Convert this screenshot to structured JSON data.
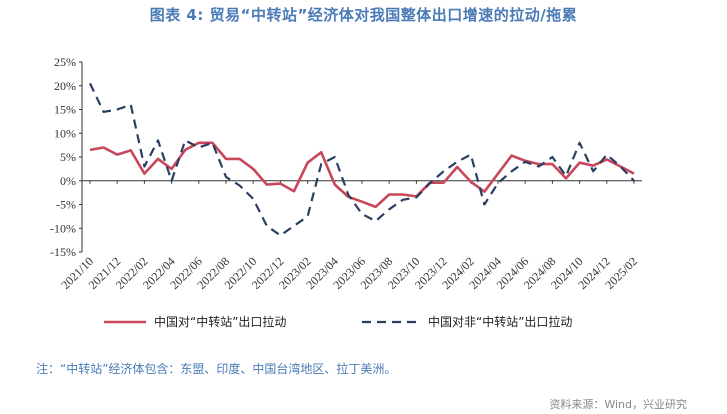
{
  "title": "图表 4:    贸易“中转站”经济体对我国整体出口增速的拉动/拖累",
  "note": "注：“中转站”经济体包含：东盟、印度、中国台湾地区、拉丁美洲。",
  "source": "资料来源：Wind，兴业研究",
  "chart_data": {
    "type": "line",
    "x_tick_labels": [
      "2021/10",
      "2021/12",
      "2022/02",
      "2022/04",
      "2022/06",
      "2022/08",
      "2022/10",
      "2022/12",
      "2023/02",
      "2023/04",
      "2023/06",
      "2023/08",
      "2023/10",
      "2023/12",
      "2024/02",
      "2024/04",
      "2024/06",
      "2024/08",
      "2024/10",
      "2024/12",
      "2025/02"
    ],
    "y_tick_labels": [
      "25%",
      "20%",
      "15%",
      "10%",
      "5%",
      "0%",
      "-5%",
      "-10%",
      "-15%"
    ],
    "ylim": [
      -15,
      25
    ],
    "series": [
      {
        "name": "中国对“中转站”出口拉动",
        "color": "#c8475b",
        "style": "solid",
        "values": [
          6.5,
          7.0,
          5.5,
          6.4,
          1.5,
          4.6,
          2.5,
          6.5,
          8.0,
          8.0,
          4.6,
          4.6,
          2.5,
          -0.8,
          -0.6,
          -2.2,
          3.8,
          6.0,
          -0.8,
          -3.4,
          -4.4,
          -5.5,
          -2.9,
          -2.9,
          -3.3,
          -0.4,
          -0.4,
          2.9,
          -0.2,
          -2.3,
          1.5,
          5.3,
          4.2,
          3.5,
          3.5,
          0.5,
          3.8,
          3.2,
          4.5,
          3.0,
          1.5
        ]
      },
      {
        "name": "中国对非“中转站”出口拉动",
        "color": "#2b3f61",
        "style": "dashed",
        "values": [
          20.5,
          14.5,
          15.0,
          16.0,
          3.0,
          8.5,
          0.0,
          8.5,
          7.0,
          8.0,
          0.8,
          -1.0,
          -3.8,
          -9.5,
          -11.5,
          -9.5,
          -7.5,
          3.5,
          5.0,
          -3.0,
          -7.0,
          -8.5,
          -6.0,
          -4.0,
          -3.5,
          -0.5,
          2.0,
          4.0,
          5.5,
          -5.0,
          -0.5,
          2.0,
          4.0,
          3.0,
          5.0,
          1.0,
          8.0,
          2.0,
          5.5,
          3.0,
          0.0
        ]
      }
    ]
  }
}
